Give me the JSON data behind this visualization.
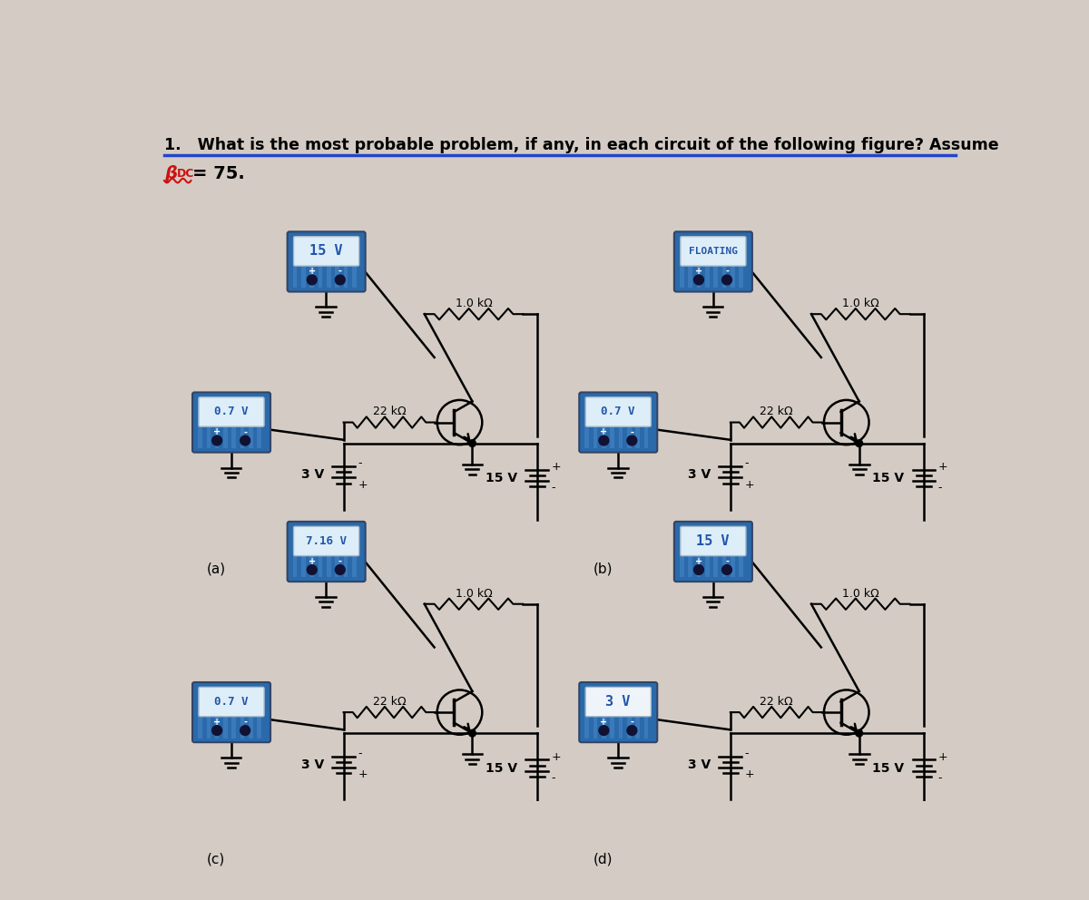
{
  "bg_color": "#d4ccc4",
  "title_line1": "1.   What is the most probable problem, if any, in each circuit of the following figure? Assume",
  "title_line2_beta": "β",
  "title_line2_dc": "DC",
  "title_line2_rest": "= 75.",
  "meter_blue_dark": "#2a6aaa",
  "meter_blue_light": "#4a8acc",
  "meter_display_bg": "#b8cfe8",
  "meter_display_white": "#ddeeff",
  "circuit_a": {
    "meter_top_value": "15 V",
    "meter_bottom_value": "0.7 V",
    "r_base_label": "22 kΩ",
    "r_col_label": "1.0 kΩ",
    "vcc_label": "15 V",
    "vbb_label": "3 V",
    "label": "(a)",
    "meter_bottom_white": false
  },
  "circuit_b": {
    "meter_top_value": "FLOATING",
    "meter_bottom_value": "0.7 V",
    "r_base_label": "22 kΩ",
    "r_col_label": "1.0 kΩ",
    "vcc_label": "15 V",
    "vbb_label": "3 V",
    "label": "(b)",
    "meter_bottom_white": false
  },
  "circuit_c": {
    "meter_top_value": "7.16 V",
    "meter_bottom_value": "0.7 V",
    "r_base_label": "22 kΩ",
    "r_col_label": "1.0 kΩ",
    "vcc_label": "15 V",
    "vbb_label": "3 V",
    "label": "(c)",
    "meter_bottom_white": false
  },
  "circuit_d": {
    "meter_top_value": "15 V",
    "meter_bottom_value": "3 V",
    "r_base_label": "22 kΩ",
    "r_col_label": "1.0 kΩ",
    "vcc_label": "15 V",
    "vbb_label": "3 V",
    "label": "(d)",
    "meter_bottom_white": true
  }
}
